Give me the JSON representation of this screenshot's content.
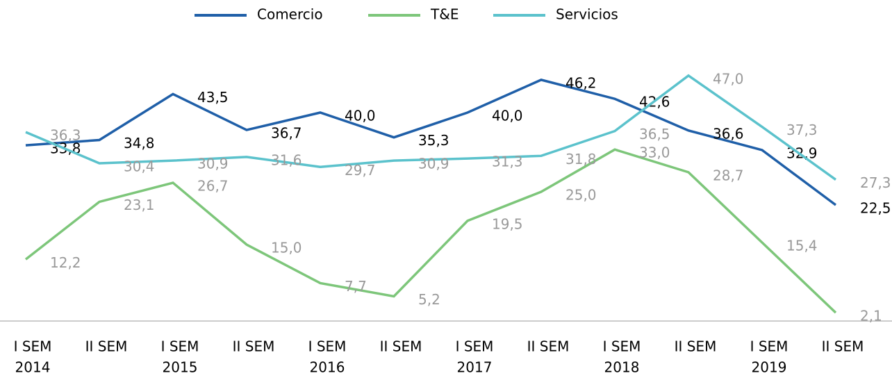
{
  "chart_data": {
    "type": "line",
    "categories": [
      [
        "I SEM",
        "2014"
      ],
      [
        "II SEM"
      ],
      [
        "I SEM",
        "2015"
      ],
      [
        "II SEM"
      ],
      [
        "I SEM",
        "2016"
      ],
      [
        "II SEM"
      ],
      [
        "I SEM",
        "2017"
      ],
      [
        "II SEM"
      ],
      [
        "I SEM",
        "2018"
      ],
      [
        "II SEM"
      ],
      [
        "I SEM",
        "2019"
      ],
      [
        "II SEM"
      ]
    ],
    "series": [
      {
        "name": "Comercio",
        "color": "#1f5fa8",
        "label_color": "#000000",
        "values": [
          33.8,
          34.8,
          43.5,
          36.7,
          40.0,
          35.3,
          40.0,
          46.2,
          42.6,
          36.6,
          32.9,
          22.5
        ],
        "value_labels": [
          "33,8",
          "34,8",
          "43,5",
          "36,7",
          "40,0",
          "35,3",
          "40,0",
          "46,2",
          "42,6",
          "36,6",
          "32,9",
          "22,5"
        ]
      },
      {
        "name": "T&E",
        "color": "#7dc67a",
        "label_color": "#999999",
        "values": [
          12.2,
          23.1,
          26.7,
          15.0,
          7.7,
          5.2,
          19.5,
          25.0,
          33.0,
          28.7,
          15.4,
          2.1
        ],
        "value_labels": [
          "12,2",
          "23,1",
          "26,7",
          "15,0",
          "7,7",
          "5,2",
          "19,5",
          "25,0",
          "33,0",
          "28,7",
          "15,4",
          "2,1"
        ]
      },
      {
        "name": "Servicios",
        "color": "#5bc2cc",
        "label_color": "#999999",
        "values": [
          36.3,
          30.4,
          30.9,
          31.6,
          29.7,
          30.9,
          31.3,
          31.8,
          36.5,
          47.0,
          37.3,
          27.3
        ],
        "value_labels": [
          "36,3",
          "30,4",
          "30,9",
          "31,6",
          "29,7",
          "30,9",
          "31,3",
          "31,8",
          "36,5",
          "47,0",
          "37,3",
          "27,3"
        ]
      }
    ],
    "ylim": [
      0,
      55
    ],
    "legend": "top"
  }
}
